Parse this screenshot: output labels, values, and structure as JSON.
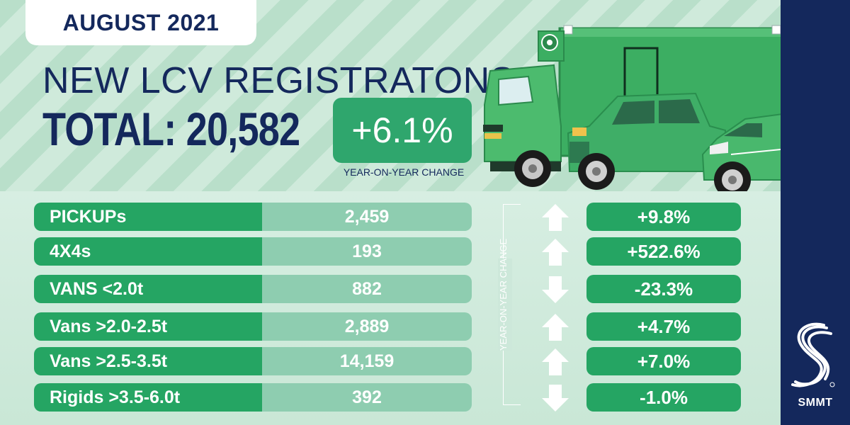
{
  "header": {
    "date_label": "AUGUST 2021",
    "headline": "NEW LCV REGISTRATONS",
    "total_label": "TOTAL: 20,582",
    "total_change": "+6.1%",
    "total_change_caption": "YEAR-ON-YEAR CHANGE"
  },
  "rows": [
    {
      "label": "PICKUPs",
      "value": "2,459",
      "direction": "up",
      "change": "+9.8%"
    },
    {
      "label": "4X4s",
      "value": "193",
      "direction": "up",
      "change": "+522.6%"
    },
    {
      "label": "VANS <2.0t",
      "value": "882",
      "direction": "down",
      "change": "-23.3%"
    },
    {
      "label": "Vans >2.0-2.5t",
      "value": "2,889",
      "direction": "up",
      "change": "+4.7%"
    },
    {
      "label": "Vans >2.5-3.5t",
      "value": "14,159",
      "direction": "up",
      "change": "+7.0%"
    },
    {
      "label": "Rigids >3.5-6.0t",
      "value": "392",
      "direction": "down",
      "change": "-1.0%"
    }
  ],
  "yoy_vertical_label": "YEAR-ON-YEAR CHANGE",
  "brand": {
    "name": "SMMT"
  },
  "colors": {
    "navy": "#14285c",
    "green": "#25a563",
    "light_green": "#8ecdb0",
    "background": "#cde8da"
  },
  "icons": {
    "up": "arrow-up-icon",
    "down": "arrow-down-icon"
  }
}
